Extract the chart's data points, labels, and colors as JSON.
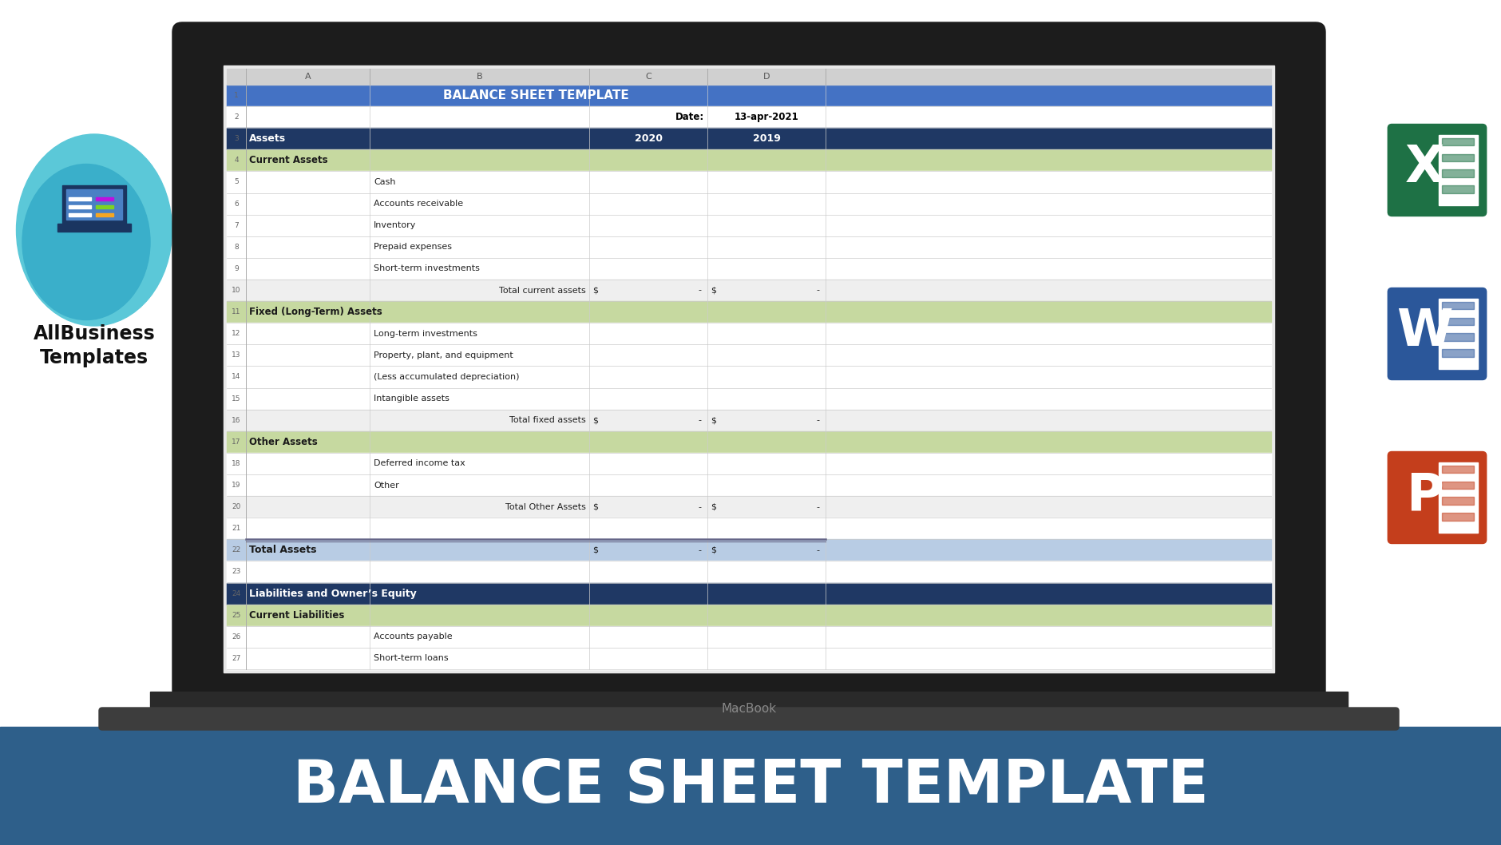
{
  "title": "BALANCE SHEET TEMPLATE",
  "bottom_title": "BALANCE SHEET TEMPLATE",
  "date_label": "Date:",
  "date_value": "13-apr-2021",
  "col_headers": [
    "A",
    "B",
    "C",
    "D"
  ],
  "year_headers": [
    "2020",
    "2019"
  ],
  "bottom_bar_color": "#2e5f8a",
  "rows": [
    {
      "type": "title",
      "text": "BALANCE SHEET TEMPLATE",
      "bg": "#4472c4",
      "fg": "#ffffff",
      "bold": true
    },
    {
      "type": "date_row",
      "text": "",
      "bg": "#ffffff",
      "fg": "#000000",
      "bold": false
    },
    {
      "type": "section_header",
      "text": "Assets",
      "bg": "#1f3864",
      "fg": "#ffffff",
      "bold": true,
      "show_years": true
    },
    {
      "type": "subsection_header",
      "text": "Current Assets",
      "bg": "#c6d9a0",
      "fg": "#1a1a1a",
      "bold": true
    },
    {
      "type": "item",
      "text": "Cash",
      "bg": "#ffffff",
      "fg": "#222222",
      "bold": false
    },
    {
      "type": "item",
      "text": "Accounts receivable",
      "bg": "#ffffff",
      "fg": "#222222",
      "bold": false
    },
    {
      "type": "item",
      "text": "Inventory",
      "bg": "#ffffff",
      "fg": "#222222",
      "bold": false
    },
    {
      "type": "item",
      "text": "Prepaid expenses",
      "bg": "#ffffff",
      "fg": "#222222",
      "bold": false
    },
    {
      "type": "item",
      "text": "Short-term investments",
      "bg": "#ffffff",
      "fg": "#222222",
      "bold": false
    },
    {
      "type": "total",
      "text": "Total current assets",
      "bg": "#efefef",
      "fg": "#222222",
      "bold": false
    },
    {
      "type": "subsection_header",
      "text": "Fixed (Long-Term) Assets",
      "bg": "#c6d9a0",
      "fg": "#1a1a1a",
      "bold": true
    },
    {
      "type": "item",
      "text": "Long-term investments",
      "bg": "#ffffff",
      "fg": "#222222",
      "bold": false
    },
    {
      "type": "item",
      "text": "Property, plant, and equipment",
      "bg": "#ffffff",
      "fg": "#222222",
      "bold": false
    },
    {
      "type": "item",
      "text": "(Less accumulated depreciation)",
      "bg": "#ffffff",
      "fg": "#222222",
      "bold": false
    },
    {
      "type": "item",
      "text": "Intangible assets",
      "bg": "#ffffff",
      "fg": "#222222",
      "bold": false
    },
    {
      "type": "total",
      "text": "Total fixed assets",
      "bg": "#efefef",
      "fg": "#222222",
      "bold": false
    },
    {
      "type": "subsection_header",
      "text": "Other Assets",
      "bg": "#c6d9a0",
      "fg": "#1a1a1a",
      "bold": true
    },
    {
      "type": "item",
      "text": "Deferred income tax",
      "bg": "#ffffff",
      "fg": "#222222",
      "bold": false
    },
    {
      "type": "item",
      "text": "Other",
      "bg": "#ffffff",
      "fg": "#222222",
      "bold": false
    },
    {
      "type": "total",
      "text": "Total Other Assets",
      "bg": "#efefef",
      "fg": "#222222",
      "bold": false
    },
    {
      "type": "blank",
      "text": "",
      "bg": "#ffffff",
      "fg": "#000000",
      "bold": false
    },
    {
      "type": "grand_total",
      "text": "Total Assets",
      "bg": "#b8cce4",
      "fg": "#1a1a1a",
      "bold": true
    },
    {
      "type": "blank",
      "text": "",
      "bg": "#ffffff",
      "fg": "#000000",
      "bold": false
    },
    {
      "type": "section_header",
      "text": "Liabilities and Owner’s Equity",
      "bg": "#1f3864",
      "fg": "#ffffff",
      "bold": true,
      "show_years": false
    },
    {
      "type": "subsection_header",
      "text": "Current Liabilities",
      "bg": "#c6d9a0",
      "fg": "#1a1a1a",
      "bold": true
    },
    {
      "type": "item",
      "text": "Accounts payable",
      "bg": "#ffffff",
      "fg": "#222222",
      "bold": false
    },
    {
      "type": "item",
      "text": "Short-term loans",
      "bg": "#ffffff",
      "fg": "#222222",
      "bold": false
    }
  ]
}
